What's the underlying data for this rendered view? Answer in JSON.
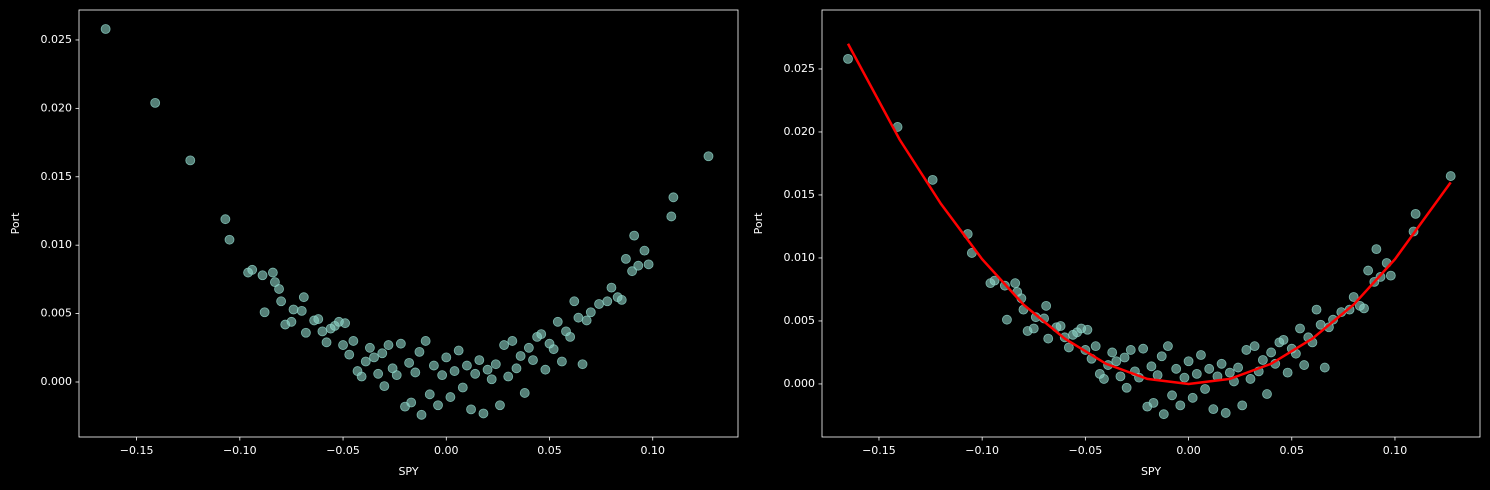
{
  "chart_data": [
    {
      "type": "scatter",
      "xlabel": "SPY",
      "ylabel": "Port",
      "xlim": [
        -0.1779,
        0.1413
      ],
      "ylim": [
        -0.00402,
        0.02719
      ],
      "xticks": [
        {
          "value": -0.15,
          "label": "−0.15"
        },
        {
          "value": -0.1,
          "label": "−0.10"
        },
        {
          "value": -0.05,
          "label": "−0.05"
        },
        {
          "value": 0,
          "label": "0.00"
        },
        0.05,
        {
          "value": 0.1,
          "label": "0.10"
        }
      ],
      "yticks": [
        {
          "value": 0,
          "label": "0.000"
        },
        0.005,
        {
          "value": 0.01,
          "label": "0.010"
        },
        0.015,
        {
          "value": 0.02,
          "label": "0.020"
        },
        0.025
      ],
      "x": [
        -0.165,
        -0.141,
        -0.124,
        -0.107,
        -0.105,
        -0.096,
        -0.094,
        -0.089,
        -0.088,
        -0.084,
        -0.083,
        -0.081,
        -0.08,
        -0.078,
        -0.075,
        -0.074,
        -0.07,
        -0.069,
        -0.068,
        -0.064,
        -0.062,
        -0.06,
        -0.058,
        -0.056,
        -0.054,
        -0.052,
        -0.05,
        -0.049,
        -0.047,
        -0.045,
        -0.043,
        -0.041,
        -0.039,
        -0.037,
        -0.035,
        -0.033,
        -0.031,
        -0.03,
        -0.028,
        -0.026,
        -0.024,
        -0.022,
        -0.02,
        -0.018,
        -0.017,
        -0.015,
        -0.013,
        -0.012,
        -0.01,
        -0.008,
        -0.006,
        -0.004,
        -0.002,
        0.0,
        0.002,
        0.004,
        0.006,
        0.008,
        0.01,
        0.012,
        0.014,
        0.016,
        0.018,
        0.02,
        0.022,
        0.024,
        0.026,
        0.028,
        0.03,
        0.032,
        0.034,
        0.036,
        0.038,
        0.04,
        0.042,
        0.044,
        0.046,
        0.048,
        0.05,
        0.052,
        0.054,
        0.056,
        0.058,
        0.06,
        0.062,
        0.064,
        0.066,
        0.068,
        0.07,
        0.074,
        0.078,
        0.08,
        0.083,
        0.085,
        0.087,
        0.09,
        0.091,
        0.093,
        0.096,
        0.098,
        0.109,
        0.11,
        0.127
      ],
      "series": [
        {
          "color": "#8dd3c7",
          "values": [
            0.0258,
            0.0204,
            0.0162,
            0.0119,
            0.0104,
            0.008,
            0.0082,
            0.0078,
            0.0051,
            0.008,
            0.0073,
            0.0068,
            0.0059,
            0.0042,
            0.0044,
            0.0053,
            0.0052,
            0.0062,
            0.0036,
            0.0045,
            0.0046,
            0.0037,
            0.0029,
            0.0039,
            0.0041,
            0.0044,
            0.0027,
            0.0043,
            0.002,
            0.003,
            0.0008,
            0.0004,
            0.0015,
            0.0025,
            0.0018,
            0.0006,
            0.0021,
            -0.0003,
            0.0027,
            0.001,
            0.0005,
            0.0028,
            -0.0018,
            0.0014,
            -0.0015,
            0.0007,
            0.0022,
            -0.0024,
            0.003,
            -0.0009,
            0.0012,
            -0.0017,
            0.0005,
            0.0018,
            -0.0011,
            0.0008,
            0.0023,
            -0.0004,
            0.0012,
            -0.002,
            0.0006,
            0.0016,
            -0.0023,
            0.0009,
            0.0002,
            0.0013,
            -0.0017,
            0.0027,
            0.0004,
            0.003,
            0.001,
            0.0019,
            -0.0008,
            0.0025,
            0.0016,
            0.0033,
            0.0035,
            0.0009,
            0.0028,
            0.0024,
            0.0044,
            0.0015,
            0.0037,
            0.0033,
            0.0059,
            0.0047,
            0.0013,
            0.0045,
            0.0051,
            0.0057,
            0.0059,
            0.0069,
            0.0062,
            0.006,
            0.009,
            0.0081,
            0.0107,
            0.0085,
            0.0096,
            0.0086,
            0.0121,
            0.0135,
            0.0165
          ]
        }
      ]
    },
    {
      "type": "scatter",
      "xlabel": "SPY",
      "ylabel": "Port",
      "xlim": [
        -0.1776,
        0.1412
      ],
      "ylim": [
        -0.00421,
        0.02968
      ],
      "xticks": [
        {
          "value": -0.15,
          "label": "−0.15"
        },
        {
          "value": -0.1,
          "label": "−0.10"
        },
        {
          "value": -0.05,
          "label": "−0.05"
        },
        {
          "value": 0,
          "label": "0.00"
        },
        0.05,
        {
          "value": 0.1,
          "label": "0.10"
        }
      ],
      "yticks": [
        {
          "value": 0,
          "label": "0.000"
        },
        0.005,
        {
          "value": 0.01,
          "label": "0.010"
        },
        0.015,
        {
          "value": 0.02,
          "label": "0.020"
        },
        0.025
      ],
      "x": [
        -0.165,
        -0.141,
        -0.124,
        -0.107,
        -0.105,
        -0.096,
        -0.094,
        -0.089,
        -0.088,
        -0.084,
        -0.083,
        -0.081,
        -0.08,
        -0.078,
        -0.075,
        -0.074,
        -0.07,
        -0.069,
        -0.068,
        -0.064,
        -0.062,
        -0.06,
        -0.058,
        -0.056,
        -0.054,
        -0.052,
        -0.05,
        -0.049,
        -0.047,
        -0.045,
        -0.043,
        -0.041,
        -0.039,
        -0.037,
        -0.035,
        -0.033,
        -0.031,
        -0.03,
        -0.028,
        -0.026,
        -0.024,
        -0.022,
        -0.02,
        -0.018,
        -0.017,
        -0.015,
        -0.013,
        -0.012,
        -0.01,
        -0.008,
        -0.006,
        -0.004,
        -0.002,
        0.0,
        0.002,
        0.004,
        0.006,
        0.008,
        0.01,
        0.012,
        0.014,
        0.016,
        0.018,
        0.02,
        0.022,
        0.024,
        0.026,
        0.028,
        0.03,
        0.032,
        0.034,
        0.036,
        0.038,
        0.04,
        0.042,
        0.044,
        0.046,
        0.048,
        0.05,
        0.052,
        0.054,
        0.056,
        0.058,
        0.06,
        0.062,
        0.064,
        0.066,
        0.068,
        0.07,
        0.074,
        0.078,
        0.08,
        0.083,
        0.085,
        0.087,
        0.09,
        0.091,
        0.093,
        0.096,
        0.098,
        0.109,
        0.11,
        0.127
      ],
      "series": [
        {
          "color": "#8dd3c7",
          "values": [
            0.0258,
            0.0204,
            0.0162,
            0.0119,
            0.0104,
            0.008,
            0.0082,
            0.0078,
            0.0051,
            0.008,
            0.0073,
            0.0068,
            0.0059,
            0.0042,
            0.0044,
            0.0053,
            0.0052,
            0.0062,
            0.0036,
            0.0045,
            0.0046,
            0.0037,
            0.0029,
            0.0039,
            0.0041,
            0.0044,
            0.0027,
            0.0043,
            0.002,
            0.003,
            0.0008,
            0.0004,
            0.0015,
            0.0025,
            0.0018,
            0.0006,
            0.0021,
            -0.0003,
            0.0027,
            0.001,
            0.0005,
            0.0028,
            -0.0018,
            0.0014,
            -0.0015,
            0.0007,
            0.0022,
            -0.0024,
            0.003,
            -0.0009,
            0.0012,
            -0.0017,
            0.0005,
            0.0018,
            -0.0011,
            0.0008,
            0.0023,
            -0.0004,
            0.0012,
            -0.002,
            0.0006,
            0.0016,
            -0.0023,
            0.0009,
            0.0002,
            0.0013,
            -0.0017,
            0.0027,
            0.0004,
            0.003,
            0.001,
            0.0019,
            -0.0008,
            0.0025,
            0.0016,
            0.0033,
            0.0035,
            0.0009,
            0.0028,
            0.0024,
            0.0044,
            0.0015,
            0.0037,
            0.0033,
            0.0059,
            0.0047,
            0.0013,
            0.0045,
            0.0051,
            0.0057,
            0.0059,
            0.0069,
            0.0062,
            0.006,
            0.009,
            0.0081,
            0.0107,
            0.0085,
            0.0096,
            0.0086,
            0.0121,
            0.0135,
            0.0165
          ]
        }
      ],
      "lines": [
        {
          "color": "#ff0000",
          "x": [
            -0.165,
            -0.14,
            -0.12,
            -0.1,
            -0.08,
            -0.06,
            -0.04,
            -0.02,
            0.0,
            0.02,
            0.04,
            0.06,
            0.08,
            0.1,
            0.127
          ],
          "values": [
            0.027,
            0.0194,
            0.0143,
            0.0099,
            0.0063,
            0.0036,
            0.0016,
            0.0004,
            0.0,
            0.0004,
            0.0016,
            0.0036,
            0.0063,
            0.0099,
            0.016
          ]
        }
      ]
    }
  ]
}
